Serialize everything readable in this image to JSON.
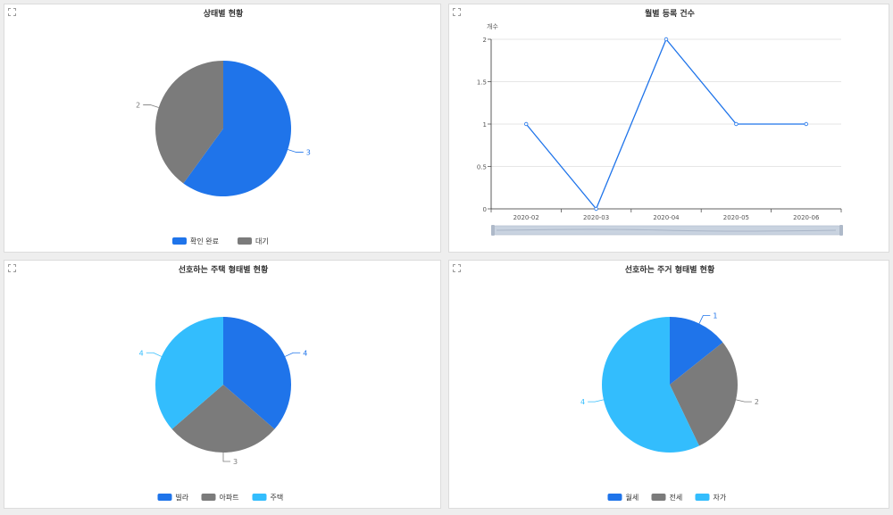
{
  "colors": {
    "blue": "#1f74ea",
    "gray": "#7b7b7b",
    "sky": "#33bdfd"
  },
  "chart_data": [
    {
      "type": "pie",
      "title": "상태별 현황",
      "slices": [
        {
          "label": "확인 완료",
          "value": 3,
          "color": "#1f74ea"
        },
        {
          "label": "대기",
          "value": 2,
          "color": "#7b7b7b"
        }
      ],
      "legend_position": "bottom-center"
    },
    {
      "type": "line",
      "title": "월별 등록 건수",
      "ylabel": "개수",
      "x": [
        "2020-02",
        "2020-03",
        "2020-04",
        "2020-05",
        "2020-06"
      ],
      "series": [
        {
          "values": [
            1,
            0,
            2,
            1,
            1
          ],
          "color": "#1f74ea"
        }
      ],
      "yticks": [
        "0",
        "0.5",
        "1",
        "1.5",
        "2"
      ],
      "ylim": [
        0,
        2
      ],
      "grid": true,
      "scrollbar": true
    },
    {
      "type": "pie",
      "title": "선호하는 주택 형태별 현황",
      "slices": [
        {
          "label": "빌라",
          "value": 4,
          "color": "#1f74ea"
        },
        {
          "label": "아파트",
          "value": 3,
          "color": "#7b7b7b"
        },
        {
          "label": "주택",
          "value": 4,
          "color": "#33bdfd"
        }
      ],
      "legend_position": "bottom-center"
    },
    {
      "type": "pie",
      "title": "선호하는 주거 형태별 현황",
      "slices": [
        {
          "label": "월세",
          "value": 1,
          "color": "#1f74ea"
        },
        {
          "label": "전세",
          "value": 2,
          "color": "#7b7b7b"
        },
        {
          "label": "자가",
          "value": 4,
          "color": "#33bdfd"
        }
      ],
      "legend_position": "bottom-center"
    }
  ]
}
